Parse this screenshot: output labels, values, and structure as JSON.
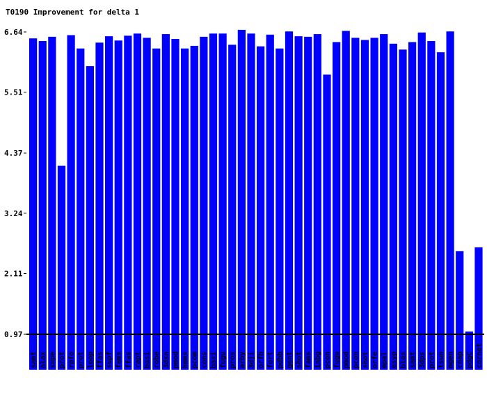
{
  "chart_data": {
    "type": "bar",
    "title": "T0190 Improvement for delta 1",
    "xlabel": "",
    "ylabel": "",
    "ylim": [
      0,
      6.64
    ],
    "baseline": 0.97,
    "yticks": [
      "0.97",
      "2.11",
      "3.24",
      "4.37",
      "5.51",
      "6.64"
    ],
    "grid": false,
    "bar_color": "#0000ff",
    "categories": [
      "samt",
      "alax",
      "supe",
      "prot",
      "rpfo",
      "prot",
      "loop",
      "ffas",
      "supf",
      "fams",
      "ffas",
      "rapt",
      "basi",
      "robe",
      "3dsn",
      "pmod",
      "hmms",
      "pcom",
      "cons",
      "basi",
      "fugu",
      "pros",
      "arby",
      "3dji",
      "orfb",
      "fort",
      "pdbb",
      "gent",
      "shot",
      "fams",
      "inbg",
      "pcon",
      "fugu",
      "pmod",
      "pcon",
      "shot",
      "orfe",
      "mpal",
      "esyp",
      "blas",
      "samt",
      "3dps",
      "prot",
      "tsun",
      "mgen",
      "cnap",
      "pdgC",
      "cornet"
    ],
    "values": [
      6.52,
      6.47,
      6.55,
      4.13,
      6.58,
      6.33,
      6.0,
      6.44,
      6.56,
      6.48,
      6.57,
      6.61,
      6.53,
      6.33,
      6.6,
      6.51,
      6.33,
      6.38,
      6.55,
      6.61,
      6.61,
      6.4,
      6.68,
      6.61,
      6.37,
      6.59,
      6.33,
      6.65,
      6.56,
      6.55,
      6.6,
      5.84,
      6.45,
      6.66,
      6.53,
      6.49,
      6.53,
      6.6,
      6.42,
      6.31,
      6.45,
      6.63,
      6.47,
      6.26,
      6.65,
      2.53,
      1.02,
      2.6
    ]
  }
}
